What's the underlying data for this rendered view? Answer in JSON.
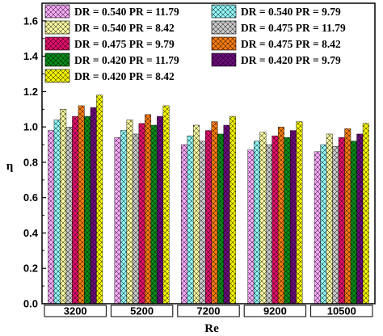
{
  "chart_data": {
    "type": "bar",
    "xlabel": "Re",
    "ylabel": "η",
    "ylim": [
      0,
      1.7
    ],
    "yticks": [
      "0.0",
      "0.2",
      "0.4",
      "0.6",
      "0.8",
      "1.0",
      "1.2",
      "1.4",
      "1.6"
    ],
    "categories": [
      "3200",
      "5200",
      "7200",
      "9200",
      "10500"
    ],
    "legend_placement": "top, inside plot, two columns",
    "series": [
      {
        "name": "DR = 0.540 PR = 11.79",
        "color": "#f7a8f7",
        "values": [
          0.98,
          0.94,
          0.9,
          0.87,
          0.86
        ]
      },
      {
        "name": "DR = 0.540 PR = 9.79",
        "color": "#8ff5f5",
        "values": [
          1.04,
          0.98,
          0.95,
          0.92,
          0.9
        ]
      },
      {
        "name": "DR = 0.540 PR = 8.42",
        "color": "#f8f8a0",
        "values": [
          1.1,
          1.04,
          1.01,
          0.97,
          0.96
        ]
      },
      {
        "name": "DR = 0.475 PR = 11.79",
        "color": "#c8c8c8",
        "values": [
          1.0,
          0.96,
          0.92,
          0.9,
          0.89
        ]
      },
      {
        "name": "DR = 0.475 PR = 9.79",
        "color": "#e0106a",
        "values": [
          1.06,
          1.02,
          0.98,
          0.95,
          0.94
        ]
      },
      {
        "name": "DR = 0.475 PR = 8.42",
        "color": "#f57a10",
        "values": [
          1.12,
          1.07,
          1.03,
          1.0,
          0.99
        ]
      },
      {
        "name": "DR = 0.420 PR = 11.79",
        "color": "#0a8a1a",
        "values": [
          1.06,
          1.01,
          0.96,
          0.94,
          0.92
        ]
      },
      {
        "name": "DR = 0.420 PR = 9.79",
        "color": "#6a0a7a",
        "values": [
          1.11,
          1.06,
          1.01,
          0.98,
          0.96
        ]
      },
      {
        "name": "DR = 0.420 PR = 8.42",
        "color": "#f5f500",
        "values": [
          1.18,
          1.12,
          1.06,
          1.03,
          1.02
        ]
      }
    ]
  }
}
